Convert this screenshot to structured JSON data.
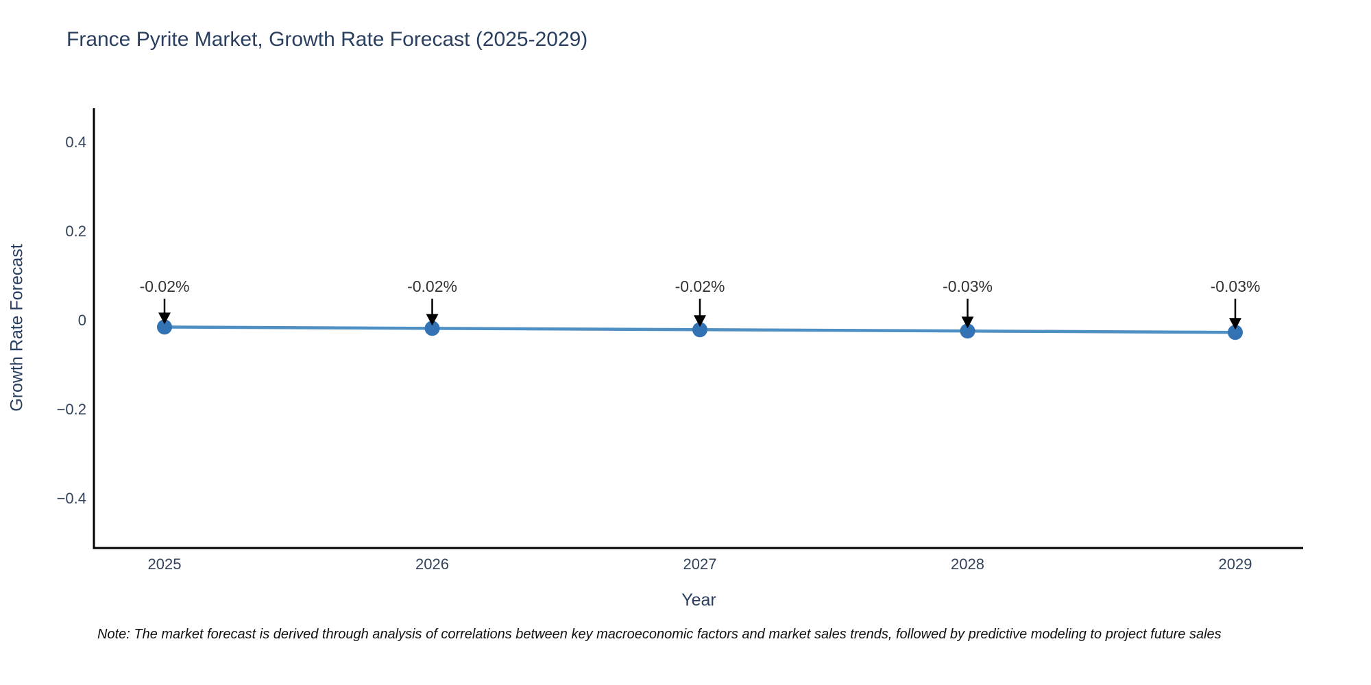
{
  "title": "France Pyrite Market, Growth Rate Forecast (2025-2029)",
  "note": "Note: The market forecast is derived through analysis of correlations between key macroeconomic factors and market sales trends, followed by predictive modeling to project future sales",
  "colors": {
    "heading": "#2a3f5f",
    "tick": "#33435c",
    "axis": "#000000",
    "line": "#4e8fc4",
    "marker": "#3473b3",
    "annotation": "#333333",
    "arrow": "#000000",
    "note": "#111111",
    "background": "#ffffff"
  },
  "chart_data": {
    "type": "line",
    "title": "France Pyrite Market, Growth Rate Forecast (2025-2029)",
    "xlabel": "Year",
    "ylabel": "Growth Rate Forecast",
    "x": [
      2025,
      2026,
      2027,
      2028,
      2029
    ],
    "values": [
      -0.02,
      -0.02,
      -0.02,
      -0.03,
      -0.03
    ],
    "values_precise_estimated": [
      -0.016,
      -0.019,
      -0.022,
      -0.025,
      -0.028
    ],
    "annotations": [
      "-0.02%",
      "-0.02%",
      "-0.02%",
      "-0.03%",
      "-0.03%"
    ],
    "xticks": [
      {
        "value": 2025,
        "label": "2025"
      },
      {
        "value": 2026,
        "label": "2026"
      },
      {
        "value": 2027,
        "label": "2027"
      },
      {
        "value": 2028,
        "label": "2028"
      },
      {
        "value": 2029,
        "label": "2029"
      }
    ],
    "yticks": [
      {
        "value": 0.4,
        "label": "0.4"
      },
      {
        "value": 0.2,
        "label": "0.2"
      },
      {
        "value": 0,
        "label": "0"
      },
      {
        "value": -0.2,
        "label": "−0.2"
      },
      {
        "value": -0.4,
        "label": "−0.4"
      }
    ],
    "xlim": [
      2024.74,
      2029.25
    ],
    "ylim": [
      -0.514,
      0.472
    ],
    "grid": false,
    "legend": false,
    "marker_style": "circle",
    "annotation_arrow": "down-arrow"
  }
}
